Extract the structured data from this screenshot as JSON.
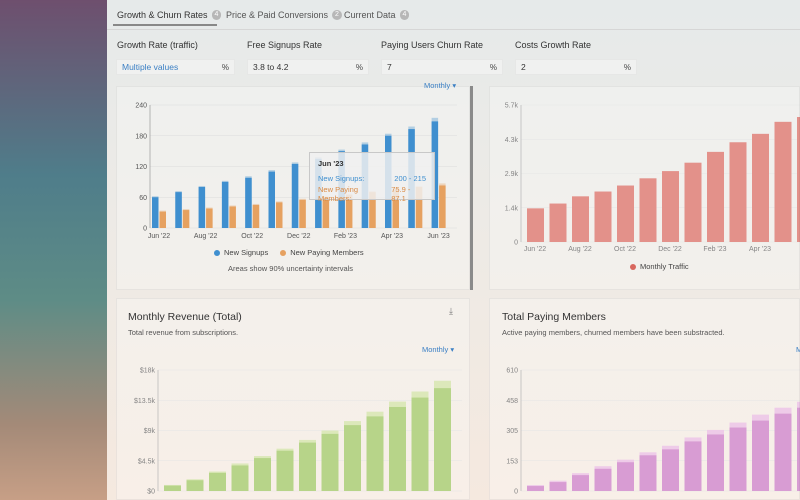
{
  "tabs": [
    {
      "label": "Growth & Churn Rates",
      "count": "4"
    },
    {
      "label": "Price & Paid Conversions",
      "count": "2"
    },
    {
      "label": "Current Data",
      "count": "4"
    }
  ],
  "inputs": [
    {
      "label": "Growth Rate (traffic)",
      "value": "Multiple values",
      "unit": "%"
    },
    {
      "label": "Free Signups Rate",
      "value": "3.8 to 4.2",
      "unit": "%"
    },
    {
      "label": "Paying Users Churn Rate",
      "value": "7",
      "unit": "%"
    },
    {
      "label": "Costs Growth Rate",
      "value": "2",
      "unit": "%"
    }
  ],
  "colors": {
    "signups": "#3f8fcf",
    "paying": "#e6a160",
    "traffic": "#d8675e",
    "revenue": "#9cc45c",
    "revenue_band": "#cfe0a0",
    "members": "#c977c2",
    "members_band": "#e8b7df"
  },
  "monthly_label": "Monthly",
  "chart_signups": {
    "chart_data": {
      "type": "bar",
      "categories": [
        "Jun '22",
        "Jul '22",
        "Aug '22",
        "Sep '22",
        "Oct '22",
        "Nov '22",
        "Dec '22",
        "Jan '23",
        "Feb '23",
        "Mar '23",
        "Apr '23",
        "May '23",
        "Jun '23"
      ],
      "series": [
        {
          "name": "New Signups",
          "values": [
            60,
            70,
            80,
            90,
            98,
            110,
            125,
            135,
            150,
            163,
            180,
            193,
            208
          ],
          "upper": [
            62,
            72,
            82,
            92,
            101,
            113,
            128,
            138,
            153,
            167,
            184,
            198,
            215
          ]
        },
        {
          "name": "New Paying Members",
          "values": [
            32,
            35,
            38,
            42,
            45,
            50,
            55,
            60,
            65,
            70,
            75,
            80,
            83
          ],
          "upper": [
            34,
            37,
            40,
            44,
            47,
            52,
            57,
            62,
            67,
            72,
            77,
            82,
            87
          ]
        }
      ],
      "ylim": [
        0,
        240
      ],
      "yticks": [
        "0",
        "60",
        "120",
        "180",
        "240"
      ],
      "xticks": [
        "Jun '22",
        "Aug '22",
        "Oct '22",
        "Dec '22",
        "Feb '23",
        "Apr '23",
        "Jun '23"
      ]
    },
    "note": "Areas show 90% uncertainty intervals",
    "tooltip": {
      "title": "Jun '23",
      "row1_label": "New Signups:",
      "row1_value": "200 - 215",
      "row2_label": "New Paying Members:",
      "row2_value": "75.9 - 87.1"
    }
  },
  "chart_traffic": {
    "chart_data": {
      "type": "bar",
      "categories": [
        "Jun '22",
        "Jul '22",
        "Aug '22",
        "Sep '22",
        "Oct '22",
        "Nov '22",
        "Dec '22",
        "Jan '23",
        "Feb '23",
        "Mar '23",
        "Apr '23",
        "May '23",
        "Jun '23"
      ],
      "series": [
        {
          "name": "Monthly Traffic",
          "values": [
            1400,
            1600,
            1900,
            2100,
            2350,
            2650,
            2950,
            3300,
            3750,
            4150,
            4500,
            5000,
            5200
          ]
        }
      ],
      "ylim": [
        0,
        5700
      ],
      "yticks": [
        "0",
        "1.4k",
        "2.9k",
        "4.3k",
        "5.7k"
      ],
      "xticks": [
        "Jun '22",
        "Aug '22",
        "Oct '22",
        "Dec '22",
        "Feb '23",
        "Apr '23"
      ]
    }
  },
  "chart_revenue": {
    "title": "Monthly Revenue (Total)",
    "subtitle": "Total revenue from subscriptions.",
    "chart_data": {
      "type": "bar",
      "series": [
        {
          "name": "Revenue",
          "values": [
            800,
            1600,
            2700,
            3800,
            4900,
            6000,
            7200,
            8500,
            9800,
            11100,
            12500,
            13900,
            15300
          ],
          "upper": [
            900,
            1750,
            2900,
            4100,
            5200,
            6300,
            7600,
            9000,
            10400,
            11800,
            13300,
            14800,
            16400
          ]
        }
      ],
      "ylim": [
        0,
        18000
      ],
      "yticks": [
        "$0",
        "$4.5k",
        "$9k",
        "$13.5k",
        "$18k"
      ]
    }
  },
  "chart_members": {
    "title": "Total Paying Members",
    "subtitle": "Active paying members, churned members have been substracted.",
    "chart_data": {
      "type": "bar",
      "series": [
        {
          "name": "Paying Members",
          "values": [
            25,
            45,
            80,
            112,
            145,
            180,
            210,
            250,
            285,
            320,
            355,
            390,
            420
          ],
          "upper": [
            30,
            52,
            90,
            125,
            158,
            195,
            228,
            270,
            308,
            345,
            385,
            420,
            450
          ]
        }
      ],
      "ylim": [
        0,
        610
      ],
      "yticks": [
        "0",
        "153",
        "305",
        "458",
        "610"
      ]
    }
  }
}
